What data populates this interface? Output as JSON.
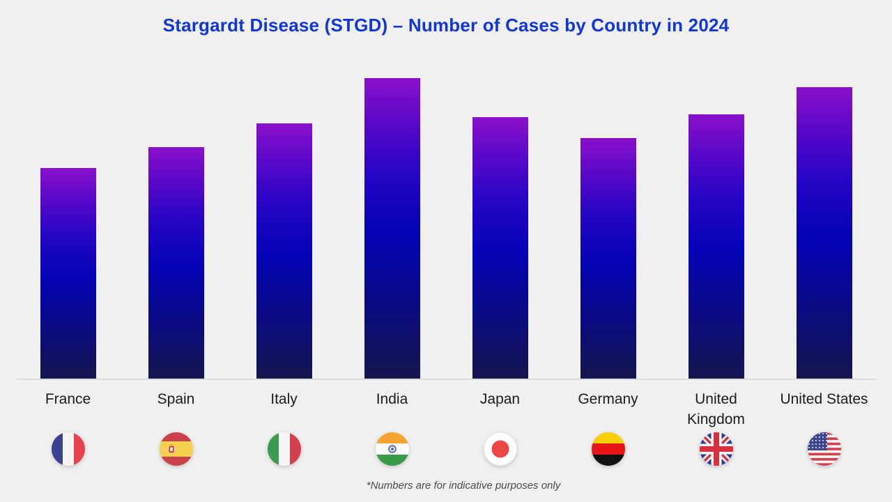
{
  "page": {
    "background_color": "#f0f0f1",
    "footnote": "*Numbers are for indicative purposes only"
  },
  "title": {
    "text": "Stargardt Disease (STGD) – Number of Cases by Country in 2024",
    "color": "#1136d8"
  },
  "chart_data": {
    "type": "bar",
    "title": "Stargardt Disease (STGD) – Number of Cases by Country in 2024",
    "categories": [
      "France",
      "Spain",
      "Italy",
      "India",
      "Japan",
      "Germany",
      "United Kingdom",
      "United States"
    ],
    "values": [
      70,
      77,
      85,
      100,
      87,
      80,
      88,
      97
    ],
    "value_scale": "relative units, tallest bar (India) = 100; chart displays no numeric y-axis",
    "xlabel": "",
    "ylabel": "",
    "ylim": [
      0,
      100
    ],
    "grid": false,
    "legend": false,
    "bar_gradient": [
      "#8a10ca",
      "#2505c5",
      "#0303b5",
      "#15154e"
    ],
    "annotation": "*Numbers are for indicative purposes only"
  },
  "countries": [
    {
      "key": "france",
      "label": "France",
      "label2": "",
      "icon": "france-flag-icon"
    },
    {
      "key": "spain",
      "label": "Spain",
      "label2": "",
      "icon": "spain-flag-icon"
    },
    {
      "key": "italy",
      "label": "Italy",
      "label2": "",
      "icon": "italy-flag-icon"
    },
    {
      "key": "india",
      "label": "India",
      "label2": "",
      "icon": "india-flag-icon"
    },
    {
      "key": "japan",
      "label": "Japan",
      "label2": "",
      "icon": "japan-flag-icon"
    },
    {
      "key": "germany",
      "label": "Germany",
      "label2": "",
      "icon": "germany-flag-icon"
    },
    {
      "key": "uk",
      "label": "United",
      "label2": "Kingdom",
      "icon": "united-kingdom-flag-icon"
    },
    {
      "key": "us",
      "label": "United States",
      "label2": "",
      "icon": "united-states-flag-icon"
    }
  ]
}
